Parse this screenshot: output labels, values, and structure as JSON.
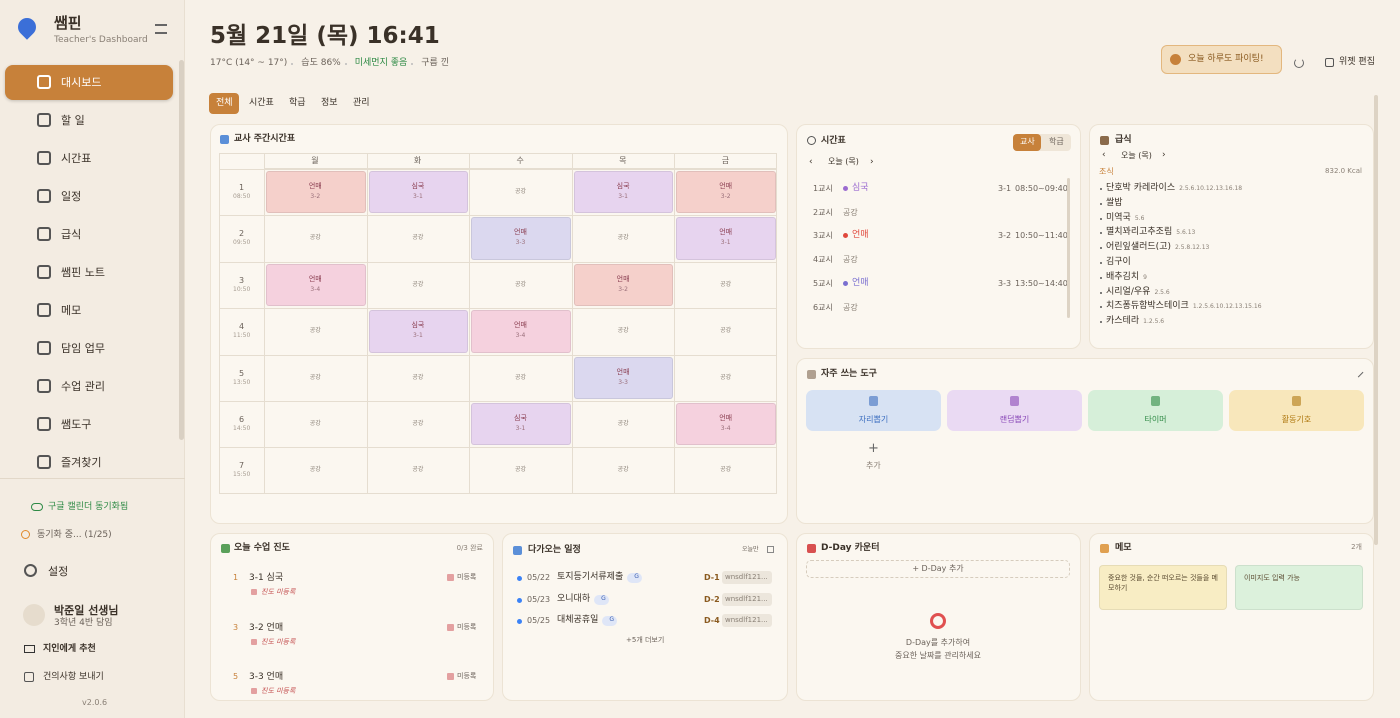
{
  "sidebar": {
    "app_name": "쌤핀",
    "subtitle": "Teacher's Dashboard",
    "nav": [
      "대시보드",
      "할 일",
      "시간표",
      "일정",
      "급식",
      "쌤핀 노트",
      "메모",
      "담임 업무",
      "수업 관리",
      "쌤도구",
      "즐겨찾기"
    ],
    "sync_status": "구글 캘린더 동기화됨",
    "sync_progress": "동기화 중... (1/25)",
    "settings": "설정",
    "user": {
      "name": "박준일 선생님",
      "role": "3학년 4반 담임"
    },
    "recommend": "지인에게 추천",
    "feedback": "건의사항 보내기",
    "version": "v2.0.6"
  },
  "header": {
    "datetime": "5월 21일 (목) 16:41",
    "weather": [
      "17°C (14° ~ 17°)",
      "습도 86%",
      "미세먼지 좋음",
      "구름 낀"
    ],
    "motto": "오늘 하루도 파이팅!",
    "edit": "위젯 편집"
  },
  "tabs": [
    "전체",
    "시간표",
    "학급",
    "정보",
    "관리"
  ],
  "weekly_timetable": {
    "title": "교사 주간시간표",
    "days": [
      "월",
      "화",
      "수",
      "목",
      "금"
    ],
    "periods": [
      {
        "num": "1",
        "time": "08:50"
      },
      {
        "num": "2",
        "time": "09:50"
      },
      {
        "num": "3",
        "time": "10:50"
      },
      {
        "num": "4",
        "time": "11:50"
      },
      {
        "num": "5",
        "time": "13:50"
      },
      {
        "num": "6",
        "time": "14:50"
      },
      {
        "num": "7",
        "time": "15:50"
      }
    ],
    "cells": [
      [
        {
          "subject": "언매",
          "class": "3-2",
          "color": "#f5d0cb"
        },
        {
          "subject": "심국",
          "class": "3-1",
          "color": "#e7d4ef"
        },
        {
          "subject": "공강"
        },
        {
          "subject": "심국",
          "class": "3-1",
          "color": "#e7d4ef"
        },
        {
          "subject": "언매",
          "class": "3-2",
          "color": "#f5d0cb"
        }
      ],
      [
        {
          "subject": "공강"
        },
        {
          "subject": "공강"
        },
        {
          "subject": "언매",
          "class": "3-3",
          "color": "#dbd8ef"
        },
        {
          "subject": "공강"
        },
        {
          "subject": "언매",
          "class": "3-1",
          "color": "#e7d4ef"
        }
      ],
      [
        {
          "subject": "언매",
          "class": "3-4",
          "color": "#f5d1de"
        },
        {
          "subject": "공강"
        },
        {
          "subject": "공강"
        },
        {
          "subject": "언매",
          "class": "3-2",
          "color": "#f5d0cb"
        },
        {
          "subject": "공강"
        }
      ],
      [
        {
          "subject": "공강"
        },
        {
          "subject": "심국",
          "class": "3-1",
          "color": "#e7d4ef"
        },
        {
          "subject": "언매",
          "class": "3-4",
          "color": "#f5d1de"
        },
        {
          "subject": "공강"
        },
        {
          "subject": "공강"
        }
      ],
      [
        {
          "subject": "공강"
        },
        {
          "subject": "공강"
        },
        {
          "subject": "공강"
        },
        {
          "subject": "언매",
          "class": "3-3",
          "color": "#dbd8ef"
        },
        {
          "subject": "공강"
        }
      ],
      [
        {
          "subject": "공강"
        },
        {
          "subject": "공강"
        },
        {
          "subject": "심국",
          "class": "3-1",
          "color": "#e7d4ef"
        },
        {
          "subject": "공강"
        },
        {
          "subject": "언매",
          "class": "3-4",
          "color": "#f5d1de"
        }
      ],
      [
        {
          "subject": "공강"
        },
        {
          "subject": "공강"
        },
        {
          "subject": "공강"
        },
        {
          "subject": "공강"
        },
        {
          "subject": "공강"
        }
      ]
    ]
  },
  "today_timetable": {
    "title": "시간표",
    "toggle": [
      "교사",
      "학급"
    ],
    "nav_label": "오늘 (목)",
    "rows": [
      {
        "period": "1교시",
        "subject": "심국",
        "class": "3-1",
        "time": "08:50~09:40",
        "color": "#9b6bd0"
      },
      {
        "period": "2교시",
        "subject": "공강"
      },
      {
        "period": "3교시",
        "subject": "언매",
        "class": "3-2",
        "time": "10:50~11:40",
        "color": "#e0483c"
      },
      {
        "period": "4교시",
        "subject": "공강"
      },
      {
        "period": "5교시",
        "subject": "언매",
        "class": "3-3",
        "time": "13:50~14:40",
        "color": "#7a6fd0"
      },
      {
        "period": "6교시",
        "subject": "공강"
      }
    ]
  },
  "meal": {
    "title": "급식",
    "nav_label": "오늘 (목)",
    "meal_type": "조식",
    "calories": "832.0 Kcal",
    "items": [
      {
        "name": "단호박 카레라이스",
        "allergens": "2.5.6.10.12.13.16.18"
      },
      {
        "name": "쌀밥"
      },
      {
        "name": "미역국",
        "allergens": "5.6"
      },
      {
        "name": "멸치꽈리고추조림",
        "allergens": "5.6.13"
      },
      {
        "name": "어린잎샐러드(고)",
        "allergens": "2.5.8.12.13"
      },
      {
        "name": "김구이"
      },
      {
        "name": "배추김치",
        "allergens": "9"
      },
      {
        "name": "시리얼/우유",
        "allergens": "2.5.6"
      },
      {
        "name": "치즈퐁듀함박스테이크",
        "allergens": "1.2.5.6.10.12.13.15.16"
      },
      {
        "name": "카스테라",
        "allergens": "1.2.5.6"
      }
    ]
  },
  "tools": {
    "title": "자주 쓰는 도구",
    "items": [
      {
        "label": "자리뽑기",
        "color": "#d7e2f3",
        "text_color": "#3d6fc0"
      },
      {
        "label": "랜덤뽑기",
        "color": "#eadaf3",
        "text_color": "#8a49b8"
      },
      {
        "label": "타이머",
        "color": "#d6efd9",
        "text_color": "#2e8a45"
      },
      {
        "label": "활동기호",
        "color": "#f8e7bb",
        "text_color": "#b07a12"
      }
    ],
    "add": "추가"
  },
  "progress": {
    "title": "오늘 수업 진도",
    "count": "0/3 완료",
    "items": [
      {
        "period": "1",
        "lesson": "3-1 심국",
        "status": "미등록",
        "note": "진도 미등록"
      },
      {
        "period": "3",
        "lesson": "3-2 언매",
        "status": "미등록",
        "note": "진도 미등록"
      },
      {
        "period": "5",
        "lesson": "3-3 언매",
        "status": "미등록",
        "note": "진도 미등록"
      }
    ]
  },
  "schedule": {
    "title": "다가오는 일정",
    "filter": "오늘만",
    "items": [
      {
        "date": "05/22",
        "title": "토지등기서류제출",
        "tag": "G",
        "dday": "D-1",
        "owner": "wnsdlf121..."
      },
      {
        "date": "05/23",
        "title": "오니대하",
        "tag": "G",
        "dday": "D-2",
        "owner": "wnsdlf121..."
      },
      {
        "date": "05/25",
        "title": "대체공휴일",
        "tag": "G",
        "dday": "D-4",
        "owner": "wnsdlf121..."
      }
    ],
    "more": "+5개 더보기"
  },
  "dday": {
    "title": "D-Day 카운터",
    "add": "+ D-Day 추가",
    "empty": [
      "D-Day를 추가하여",
      "중요한 날짜를 관리하세요"
    ]
  },
  "memo": {
    "title": "메모",
    "count": "2개",
    "notes": [
      "중요한 것들, 순간 떠오르는 것들을 메모하기",
      "이미지도 입력 가능"
    ]
  }
}
